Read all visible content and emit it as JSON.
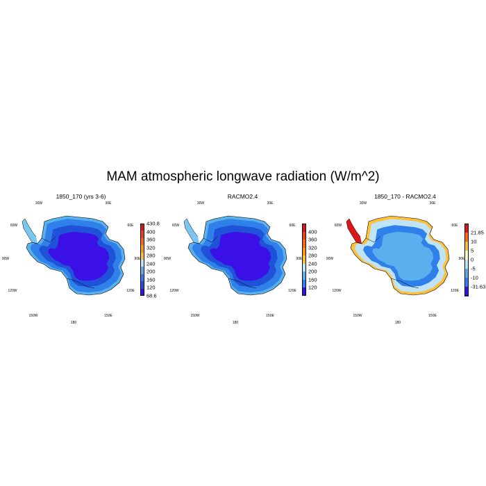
{
  "title": "MAM atmospheric longwave radiation (W/m^2)",
  "panels": [
    {
      "title": "1850_170 (yrs 3-6)",
      "lon_labels": [
        "30W",
        "30E",
        "60W",
        "60E",
        "90W",
        "90E",
        "120W",
        "120E",
        "150W",
        "150E",
        "180"
      ],
      "colorbar": {
        "labels": [
          "430.8",
          "400",
          "360",
          "320",
          "280",
          "240",
          "200",
          "160",
          "120",
          "68.6"
        ],
        "colors": [
          "#d7191c",
          "#e8411e",
          "#f46d0f",
          "#fb9a0c",
          "#fdc03a",
          "#bfe3f7",
          "#5ab0ec",
          "#2f80e8",
          "#1f52d8",
          "#3a10e6"
        ]
      },
      "fill_colors": {
        "interior": "#3a10e6",
        "mid": "#1f52d8",
        "coast": "#2f80e8",
        "edge": "#5ab0ec",
        "peninsula": "#7ac6f0"
      }
    },
    {
      "title": "RACMO2.4",
      "lon_labels": [
        "30W",
        "30E",
        "60W",
        "60E",
        "90W",
        "90E",
        "120W",
        "120E",
        "150W",
        "150E",
        "180"
      ],
      "colorbar": {
        "labels": [
          "400",
          "360",
          "320",
          "280",
          "240",
          "200",
          "160",
          "120"
        ],
        "colors": [
          "#d7191c",
          "#e8411e",
          "#f46d0f",
          "#fb9a0c",
          "#fdc03a",
          "#bfe3f7",
          "#5ab0ec",
          "#2f80e8",
          "#3a10e6"
        ]
      },
      "fill_colors": {
        "interior": "#3a10e6",
        "mid": "#1f52d8",
        "coast": "#2f80e8",
        "edge": "#5ab0ec",
        "peninsula": "#7ac6f0"
      }
    },
    {
      "title": "1850_170 - RACMO2.4",
      "lon_labels": [
        "30W",
        "30E",
        "60W",
        "60E",
        "90W",
        "90E",
        "120W",
        "120E",
        "150W",
        "150E",
        "180"
      ],
      "colorbar": {
        "labels": [
          "21.85",
          "10",
          "5",
          "0",
          "-5",
          "-10",
          "-31.63"
        ],
        "colors": [
          "#d7191c",
          "#f46d0f",
          "#fdc03a",
          "#fffbd0",
          "#bfe3f7",
          "#5ab0ec",
          "#2f80e8",
          "#3a10e6"
        ]
      },
      "fill_colors": {
        "interior": "#5ab0ec",
        "mid": "#2f80e8",
        "coast": "#bfe3f7",
        "edge": "#fdc03a",
        "peninsula": "#d7191c"
      }
    }
  ]
}
